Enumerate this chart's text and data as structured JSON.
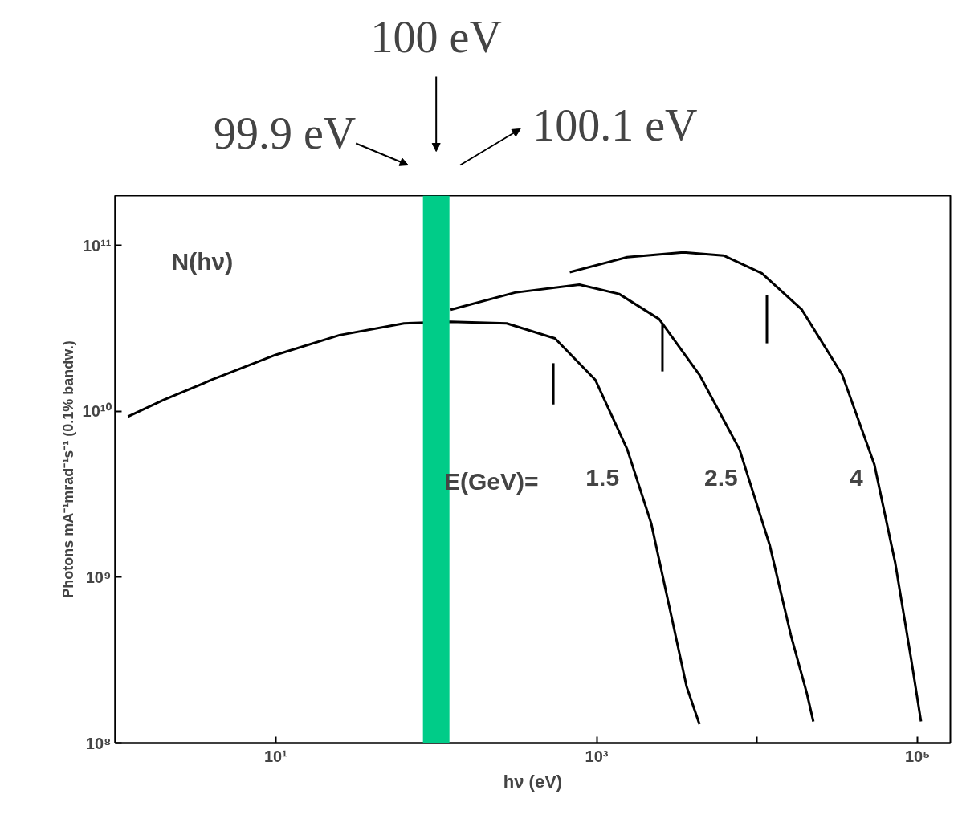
{
  "chart_data": {
    "type": "line",
    "xlabel": "hν (eV)",
    "ylabel": "Photons mA⁻¹mrad⁻¹s⁻¹ (0.1% bandw.)",
    "log": "xy",
    "grid": false,
    "marker": "none",
    "line_style": "solid",
    "xlim": [
      1,
      160000
    ],
    "ylim": [
      100000000,
      200000000000
    ],
    "xticks": [
      {
        "value": 10,
        "label": "10¹"
      },
      {
        "value": 100,
        "label": null
      },
      {
        "value": 1000,
        "label": "10³"
      },
      {
        "value": 10000,
        "label": null
      },
      {
        "value": 100000,
        "label": "10⁵"
      }
    ],
    "yticks": [
      {
        "value": 100000000,
        "label": "10⁸"
      },
      {
        "value": 1000000000,
        "label": "10⁹"
      },
      {
        "value": 10000000000,
        "label": "10¹⁰"
      },
      {
        "value": 100000000000,
        "label": "10¹¹"
      }
    ],
    "series": [
      {
        "name": "1.5",
        "color": "#000000",
        "x": [
          1.2,
          2.0,
          4.0,
          10,
          25,
          63,
          123,
          275,
          550,
          980,
          1550,
          2190,
          2880,
          3630,
          4370
        ],
        "values": [
          9300000000,
          11700000000,
          15500000000,
          21900000000,
          28800000000,
          33900000000,
          34700000000,
          33900000000,
          27500000000,
          15500000000,
          5900000000,
          2100000000,
          620000000,
          220000000,
          130000000
        ]
      },
      {
        "name": "2.5",
        "color": "#000000",
        "x": [
          123,
          310,
          780,
          1380,
          2450,
          4370,
          7760,
          12000,
          16200,
          20400,
          22400
        ],
        "values": [
          41000000000,
          52000000000,
          58000000000,
          51000000000,
          36000000000,
          16600000000,
          5900000000,
          1550000000,
          450000000,
          200000000,
          135000000
        ]
      },
      {
        "name": "4",
        "color": "#000000",
        "x": [
          680,
          1550,
          3470,
          6170,
          10700,
          19000,
          33900,
          53700,
          72400,
          91200,
          105000
        ],
        "values": [
          69000000000,
          85000000000,
          91000000000,
          87000000000,
          68000000000,
          41000000000,
          16600000000,
          4800000000,
          1230000000,
          320000000,
          135000000
        ]
      },
      {
        "color": "#000000",
        "x": [
          537,
          537
        ],
        "values": [
          19500000000,
          11000000000
        ]
      },
      {
        "color": "#000000",
        "x": [
          2570,
          2570
        ],
        "values": [
          34000000000,
          17400000000
        ]
      },
      {
        "color": "#000000",
        "x": [
          11500,
          11500
        ],
        "values": [
          50000000000,
          25700000000
        ]
      }
    ],
    "ref_lines": [
      {
        "axis": "x",
        "value": 100,
        "color": "#00cc88"
      }
    ],
    "annotations": [
      "99.9 eV",
      "100 eV",
      "100.1 eV",
      "N(hν)",
      {
        "text": "E(GeV)=",
        "x": 112,
        "y": 3800000000
      }
    ]
  }
}
